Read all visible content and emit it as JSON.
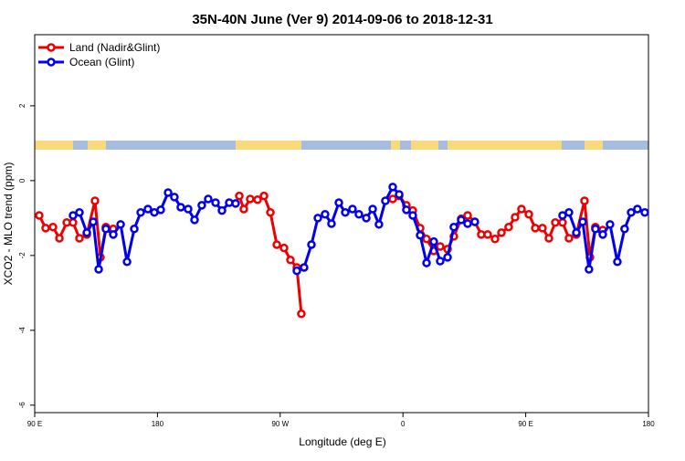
{
  "chart_data": {
    "type": "line",
    "title": "35N-40N June (Ver 9)   2014-09-06 to 2018-12-31",
    "xlabel": "Longitude (deg E)",
    "ylabel": "XCO2 - MLO trend (ppm)",
    "xlim": [
      90,
      540
    ],
    "xticks": [
      {
        "value": 90,
        "label": "90 E"
      },
      180,
      {
        "value": 270,
        "label": "90 W"
      },
      {
        "value": 360,
        "label": "0"
      },
      {
        "value": 450,
        "label": "90 E"
      },
      {
        "value": 540,
        "label": "180"
      }
    ],
    "ylim": [
      -6.2,
      3.9
    ],
    "yticks": [
      -6,
      -4,
      -2,
      0,
      2
    ],
    "legend": "top-left",
    "series": [
      {
        "name": "Land (Nadir&Glint)",
        "color": "#ee0000",
        "x": [
          93.3,
          98.0,
          103.4,
          108.1,
          113.5,
          118.1,
          122.8,
          128.2,
          134.2,
          138.2,
          142.2,
          147.6,
          null,
          240.0,
          243.3,
          248.0,
          253.4,
          258.1,
          262.8,
          267.5,
          272.8,
          277.5,
          282.2,
          285.5,
          null,
          352.5,
          357.2,
          362.5,
          367.2,
          372.6,
          377.3,
          382.6,
          387.3,
          392.7,
          397.3,
          402.7,
          407.4,
          412.7,
          417.4,
          422.1,
          427.5,
          432.2,
          437.5,
          442.2,
          446.9,
          452.3,
          457.0,
          462.3,
          467.0,
          471.7,
          477.0,
          481.7,
          487.1,
          493.1,
          497.1,
          501.1,
          506.5
        ],
        "values": [
          -0.93,
          -1.27,
          -1.24,
          -1.54,
          -1.12,
          -1.12,
          -1.54,
          -1.44,
          -0.54,
          -2.05,
          -1.24,
          -1.29,
          null,
          -0.41,
          -0.76,
          -0.49,
          -0.51,
          -0.41,
          -0.85,
          -1.71,
          -1.8,
          -2.12,
          -2.32,
          -3.56,
          null,
          -0.49,
          -0.41,
          -0.66,
          -0.8,
          -1.27,
          -1.56,
          -1.88,
          -1.76,
          -1.83,
          -1.49,
          -1.02,
          -0.93,
          -1.1,
          -1.44,
          -1.44,
          -1.56,
          -1.39,
          -1.24,
          -0.98,
          -0.76,
          -0.9,
          -1.27,
          -1.27,
          -1.54,
          -1.12,
          -1.12,
          -1.54,
          -1.44,
          -0.54,
          -2.05,
          -1.24,
          -1.32
        ]
      },
      {
        "name": "Ocean (Glint)",
        "color": "#0000ee",
        "x": [
          118.1,
          122.8,
          128.2,
          132.9,
          136.9,
          142.2,
          147.6,
          153.0,
          157.7,
          163.0,
          167.7,
          173.0,
          177.7,
          182.4,
          187.8,
          192.4,
          197.1,
          202.5,
          207.2,
          212.5,
          217.2,
          222.6,
          227.3,
          232.6,
          237.3,
          null,
          282.2,
          287.5,
          292.9,
          297.6,
          302.9,
          307.6,
          313.0,
          317.7,
          323.0,
          327.7,
          333.1,
          337.8,
          342.4,
          347.1,
          352.5,
          357.2,
          362.5,
          367.2,
          372.6,
          377.3,
          382.6,
          387.3,
          392.7,
          397.3,
          402.7,
          407.4,
          412.7,
          null,
          477.0,
          481.7,
          487.1,
          491.8,
          496.4,
          501.1,
          506.5,
          511.8,
          517.2,
          522.5,
          527.3,
          531.9,
          537.3
        ],
        "values": [
          -0.93,
          -0.85,
          -1.39,
          -1.1,
          -2.37,
          -1.29,
          -1.44,
          -1.17,
          -2.17,
          -1.29,
          -0.85,
          -0.76,
          -0.85,
          -0.78,
          -0.32,
          -0.44,
          -0.71,
          -0.76,
          -1.05,
          -0.66,
          -0.49,
          -0.59,
          -0.8,
          -0.59,
          -0.61,
          null,
          -2.41,
          -2.32,
          -1.71,
          -1.0,
          -0.9,
          -1.15,
          -0.59,
          -0.85,
          -0.76,
          -0.9,
          -1.0,
          -0.76,
          -1.17,
          -0.54,
          -0.17,
          -0.37,
          -0.78,
          -0.93,
          -1.46,
          -2.2,
          -1.63,
          -2.15,
          -2.05,
          -1.24,
          -1.05,
          -1.15,
          -1.1,
          null,
          -0.93,
          -0.85,
          -1.39,
          -1.1,
          -2.37,
          -1.29,
          -1.44,
          -1.17,
          -2.17,
          -1.29,
          -0.85,
          -0.76,
          -0.85
        ]
      }
    ]
  }
}
